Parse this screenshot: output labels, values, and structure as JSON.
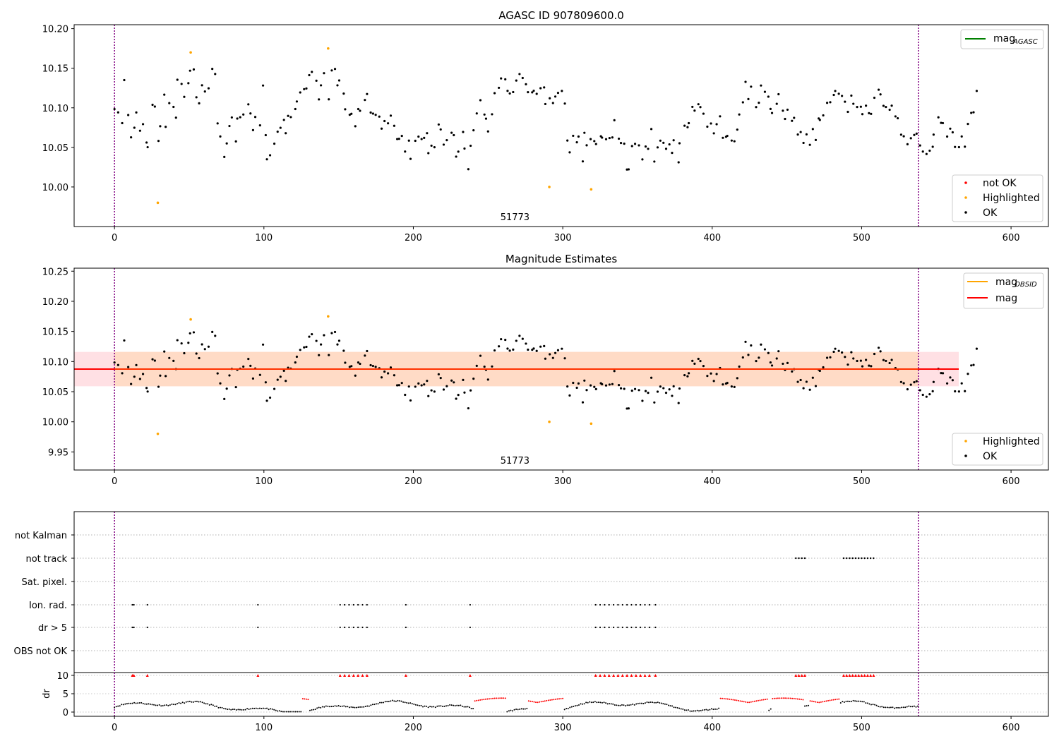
{
  "chart_data": [
    {
      "type": "scatter",
      "title": "AGASC ID 907809600.0",
      "xlim": [
        -27,
        625
      ],
      "ylim": [
        9.95,
        10.205
      ],
      "xticks": [
        0,
        100,
        200,
        300,
        400,
        500,
        600
      ],
      "yticks": [
        "10.00",
        "10.05",
        "10.10",
        "10.15",
        "10.20"
      ],
      "grid": false,
      "legend_upper": {
        "placement": "top-right",
        "entries": [
          {
            "label": "mag",
            "sub": "AGASC",
            "color": "#008000"
          }
        ]
      },
      "legend_lower": {
        "placement": "bottom-right",
        "entries": [
          {
            "label": "not OK",
            "color": "#ff0000"
          },
          {
            "label": "Highlighted",
            "color": "#ffa500"
          },
          {
            "label": "OK",
            "color": "#000000"
          }
        ]
      },
      "obsid_text": "51773",
      "obs_boundaries": [
        0,
        538
      ],
      "highlighted": [
        {
          "x": 29,
          "y": 9.98
        },
        {
          "x": 51,
          "y": 10.17
        },
        {
          "x": 143,
          "y": 10.175
        },
        {
          "x": 291,
          "y": 10.0
        },
        {
          "x": 319,
          "y": 9.997
        }
      ],
      "ok_series": {
        "x_start": 0,
        "x_step": 2,
        "values": [
          10.09,
          10.1,
          10.08,
          10.13,
          10.09,
          10.06,
          10.08,
          10.09,
          10.08,
          10.08,
          10.05,
          10.05,
          10.1,
          10.1,
          10.05,
          10.08,
          10.12,
          10.08,
          10.11,
          10.1,
          10.08,
          10.14,
          10.13,
          10.12,
          10.14,
          10.15,
          10.14,
          10.12,
          10.11,
          10.13,
          10.12,
          10.13,
          10.15,
          10.14,
          10.08,
          10.06,
          10.04,
          10.06,
          10.08,
          10.09,
          10.05,
          10.08,
          10.09,
          10.1,
          10.11,
          10.1,
          10.07,
          10.08,
          10.07,
          10.12,
          10.07,
          10.04,
          10.05,
          10.06,
          10.07,
          10.08,
          10.09,
          10.06,
          10.09,
          10.08,
          10.09,
          10.1,
          10.11,
          10.12,
          10.13,
          10.14,
          10.14,
          10.13,
          10.12,
          10.12,
          10.14,
          10.12,
          10.14,
          10.14,
          10.13,
          10.13,
          10.12,
          10.1,
          10.09,
          10.09,
          10.08,
          10.1,
          10.1,
          10.1,
          10.11,
          10.1,
          10.1,
          10.09,
          10.08,
          10.08,
          10.09,
          10.08,
          10.09,
          10.08,
          10.07,
          10.06,
          10.06,
          10.05,
          10.06,
          10.03,
          10.05,
          10.06,
          10.07,
          10.06,
          10.06,
          10.05,
          10.06,
          10.06,
          10.07,
          10.08,
          10.05,
          10.06,
          10.07,
          10.06,
          10.04,
          10.05,
          10.06,
          10.04,
          10.03,
          10.05,
          10.08,
          10.09,
          10.11,
          10.1,
          10.09,
          10.08,
          10.1,
          10.11,
          10.12,
          10.13,
          10.13,
          10.12,
          10.12,
          10.12,
          10.13,
          10.14,
          10.13,
          10.12,
          10.12,
          10.11,
          10.13,
          10.11,
          10.12,
          10.12,
          10.11,
          10.12,
          10.1,
          10.11,
          10.12,
          10.12,
          10.11,
          10.06,
          10.05,
          10.07,
          10.05,
          10.06,
          10.04,
          10.06,
          10.06,
          10.07,
          10.05,
          10.06,
          10.06,
          10.07,
          10.07,
          10.06,
          10.07,
          10.08,
          10.06,
          10.05,
          10.05,
          10.03,
          10.02,
          10.05,
          10.06,
          10.05,
          10.04,
          10.06,
          10.05,
          10.07,
          10.04,
          10.05,
          10.06,
          10.05,
          10.04,
          10.06,
          10.05,
          10.05,
          10.04,
          10.06,
          10.07,
          10.08,
          10.09,
          10.1,
          10.1,
          10.11,
          10.11,
          10.09,
          10.07,
          10.08,
          10.07,
          10.07,
          10.08,
          10.06,
          10.07,
          10.06,
          10.06,
          10.06,
          10.08,
          10.1,
          10.11,
          10.13,
          10.12,
          10.12,
          10.11,
          10.11,
          10.12,
          10.13,
          10.12,
          10.1,
          10.1,
          10.1,
          10.11,
          10.1,
          10.09,
          10.09,
          10.08,
          10.08,
          10.06,
          10.06,
          10.06,
          10.07,
          10.06,
          10.07,
          10.06,
          10.08,
          10.09,
          10.1,
          10.1,
          10.1,
          10.11,
          10.12,
          10.12,
          10.11,
          10.11,
          10.1,
          10.11,
          10.11,
          10.1,
          10.1,
          10.09,
          10.1,
          10.1,
          10.1,
          10.11,
          10.12,
          10.12,
          10.11,
          10.11,
          10.1,
          10.1,
          10.09,
          10.08,
          10.07,
          10.07,
          10.06,
          10.06,
          10.06,
          10.06,
          10.06,
          10.04,
          10.04,
          10.05,
          10.06,
          10.07,
          10.08,
          10.08,
          10.08,
          10.07,
          10.07,
          10.06,
          10.06,
          10.05,
          10.06,
          10.06,
          10.07,
          10.09,
          10.1,
          10.12
        ]
      },
      "band": {
        "center": 10.0875,
        "half_width": 0.028
      }
    },
    {
      "type": "scatter",
      "title": "Magnitude Estimates",
      "xlim": [
        -27,
        625
      ],
      "ylim": [
        9.92,
        10.255
      ],
      "xticks": [
        0,
        100,
        200,
        300,
        400,
        500,
        600
      ],
      "yticks": [
        "9.95",
        "10.00",
        "10.05",
        "10.10",
        "10.15",
        "10.20",
        "10.25"
      ],
      "grid": false,
      "legend_upper": {
        "placement": "top-right",
        "entries": [
          {
            "label": "mag",
            "sub": "OBSID",
            "color": "#ffa500"
          },
          {
            "label": "mag",
            "sub": "",
            "color": "#ff0000"
          }
        ]
      },
      "legend_lower": {
        "placement": "bottom-right",
        "entries": [
          {
            "label": "Highlighted",
            "color": "#ffa500"
          },
          {
            "label": "OK",
            "color": "#000000"
          }
        ]
      },
      "obsid_text": "51773",
      "mag_line": 10.0875,
      "band_x": [
        -27,
        565
      ],
      "band_outer": [
        10.059,
        10.116
      ],
      "band_inner_x": [
        0,
        538
      ]
    },
    {
      "type": "scatter",
      "categories": [
        "not Kalman",
        "not track",
        "Sat. pixel.",
        "Ion. rad.",
        "dr > 5",
        "OBS not OK"
      ],
      "xticks": [
        0,
        100,
        200,
        300,
        400,
        500,
        600
      ],
      "ylabel": "dr",
      "dr_yticks": [
        "0",
        "5",
        "10"
      ],
      "not_track_x": [
        [
          456,
          462
        ],
        [
          488,
          508
        ]
      ],
      "ion_rad_x": [
        12,
        13,
        22,
        96,
        151,
        154,
        157,
        160,
        163,
        166,
        169,
        195,
        238,
        322,
        325,
        328,
        331,
        334,
        337,
        340,
        343,
        346,
        349,
        352,
        355,
        358,
        362
      ],
      "dr_red_ranges": [
        [
          125,
          130
        ],
        [
          240,
          262
        ],
        [
          276,
          301
        ],
        [
          405,
          437
        ],
        [
          440,
          461
        ],
        [
          465,
          485
        ]
      ]
    }
  ]
}
